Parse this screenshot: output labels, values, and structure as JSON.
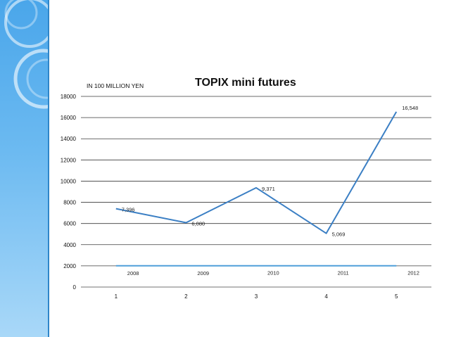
{
  "slide": {
    "accent_color": "#4aa6ea",
    "decoration": "blue-swirl-rings"
  },
  "chart_data": {
    "type": "line",
    "title": "TOPIX mini futures",
    "unit_label": "IN 100 MILLION YEN",
    "xlabel": "",
    "ylabel": "",
    "x": [
      1,
      2,
      3,
      4,
      5
    ],
    "x_tick_labels": [
      "1",
      "2",
      "3",
      "4",
      "5"
    ],
    "ylim": [
      0,
      18000
    ],
    "y_ticks": [
      0,
      2000,
      4000,
      6000,
      8000,
      10000,
      12000,
      14000,
      16000,
      18000
    ],
    "grid": true,
    "legend": "none",
    "series": [
      {
        "values": [
          7396,
          6080,
          9371,
          5069,
          16548
        ],
        "data_labels": [
          "7,396",
          "6,080",
          "9,371",
          "5,069",
          "16,548"
        ],
        "color": "#3b7fc4"
      },
      {
        "values": [
          2008,
          2009,
          2010,
          2011,
          2012
        ],
        "data_labels": [
          "2008",
          "2009",
          "2010",
          "2011",
          "2012"
        ],
        "color": "#4f9fd9"
      }
    ]
  }
}
